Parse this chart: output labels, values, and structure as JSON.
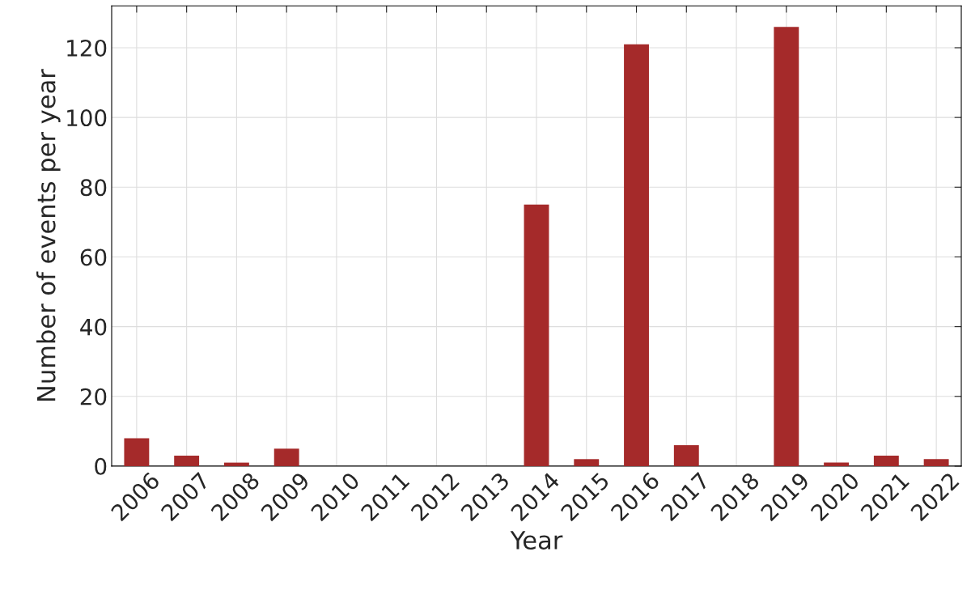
{
  "chart_data": {
    "type": "bar",
    "xlabel": "Year",
    "ylabel": "Number of events per year",
    "categories": [
      "2006",
      "2007",
      "2008",
      "2009",
      "2010",
      "2011",
      "2012",
      "2013",
      "2014",
      "2015",
      "2016",
      "2017",
      "2018",
      "2019",
      "2020",
      "2021",
      "2022"
    ],
    "values": [
      8,
      3,
      1,
      5,
      0,
      0,
      0,
      0,
      75,
      2,
      121,
      6,
      0,
      126,
      1,
      3,
      2
    ],
    "color": "#a52a2a",
    "ylim": [
      0,
      132
    ],
    "yticks": [
      0,
      20,
      40,
      60,
      80,
      100,
      120
    ],
    "grid": true
  }
}
